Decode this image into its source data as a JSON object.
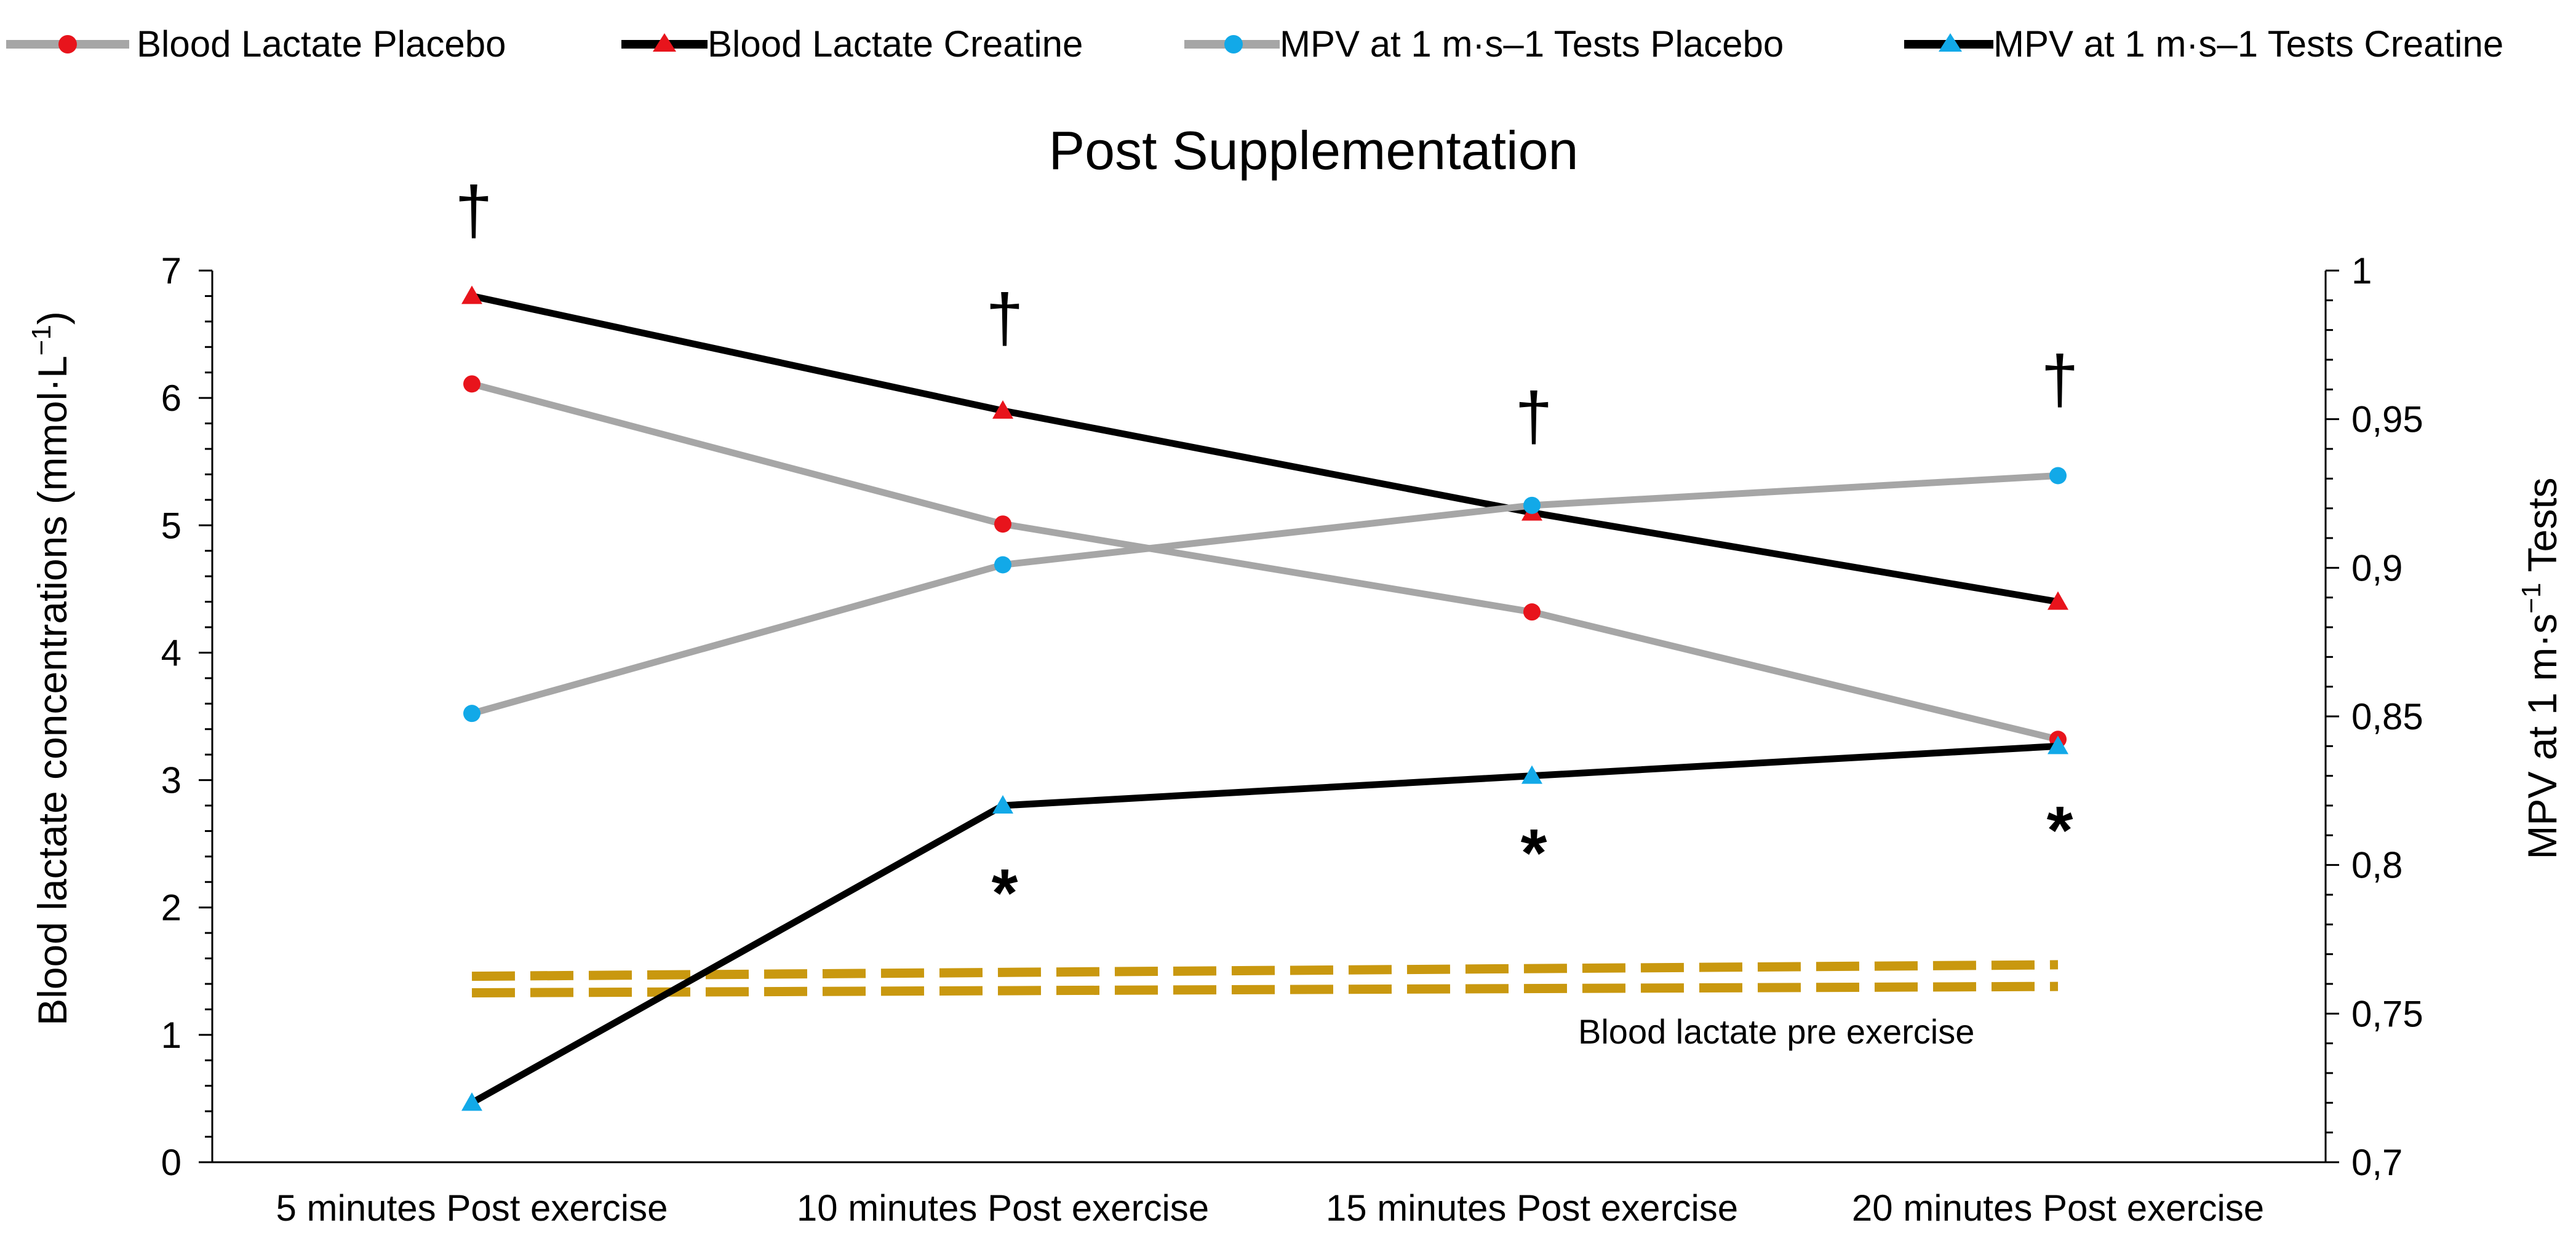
{
  "chart_data": {
    "type": "line",
    "title": "Post Supplementation",
    "categories": [
      "5 minutes Post exercise",
      "10 minutes Post exercise",
      "15 minutes Post exercise",
      "20 minutes Post exercise"
    ],
    "y_left": {
      "label_main": "Blood lactate concentrations (mmol·L",
      "label_sup": "−1",
      "label_close": ")",
      "range": [
        0,
        7
      ],
      "ticks": [
        "0",
        "1",
        "2",
        "3",
        "4",
        "5",
        "6",
        "7"
      ]
    },
    "y_right": {
      "label_main": "MPV at 1 m·s",
      "label_sup": "−1",
      "label_tail": " Tests",
      "range": [
        0.7,
        1.0
      ],
      "ticks": [
        "0,7",
        "0,75",
        "0,8",
        "0,85",
        "0,9",
        "0,95",
        "1"
      ]
    },
    "grid": false,
    "legend_position": "top",
    "series": [
      {
        "name": "Blood Lactate Placebo",
        "axis": "left",
        "line_color": "#a6a6a6",
        "marker": "circle",
        "marker_color": "#e8141c",
        "values": [
          6.11,
          5.01,
          4.32,
          3.32
        ]
      },
      {
        "name": "Blood Lactate Creatine",
        "axis": "left",
        "line_color": "#000000",
        "marker": "triangle",
        "marker_color": "#e8141c",
        "values": [
          6.8,
          5.9,
          5.1,
          4.4
        ]
      },
      {
        "name": "MPV at 1 m·s–1 Tests Placebo",
        "axis": "right",
        "line_color": "#a6a6a6",
        "marker": "circle",
        "marker_color": "#12a9e8",
        "values": [
          0.851,
          0.901,
          0.921,
          0.931
        ]
      },
      {
        "name": "MPV at 1 m·s–1 Tests Creatine",
        "axis": "right",
        "line_color": "#000000",
        "marker": "triangle",
        "marker_color": "#12a9e8",
        "values": [
          0.72,
          0.82,
          0.83,
          0.84
        ]
      }
    ],
    "reference_band": {
      "label": "Blood lactate pre exercise",
      "color": "#c9980f",
      "upper": [
        1.46,
        1.49,
        1.52,
        1.55
      ],
      "lower": [
        1.33,
        1.35,
        1.37,
        1.38
      ]
    },
    "annotations": {
      "dagger_symbol": "†",
      "dagger_at": [
        0,
        1,
        2,
        3
      ],
      "asterisk_symbol": "*",
      "asterisk_at": [
        1,
        2,
        3
      ]
    }
  }
}
